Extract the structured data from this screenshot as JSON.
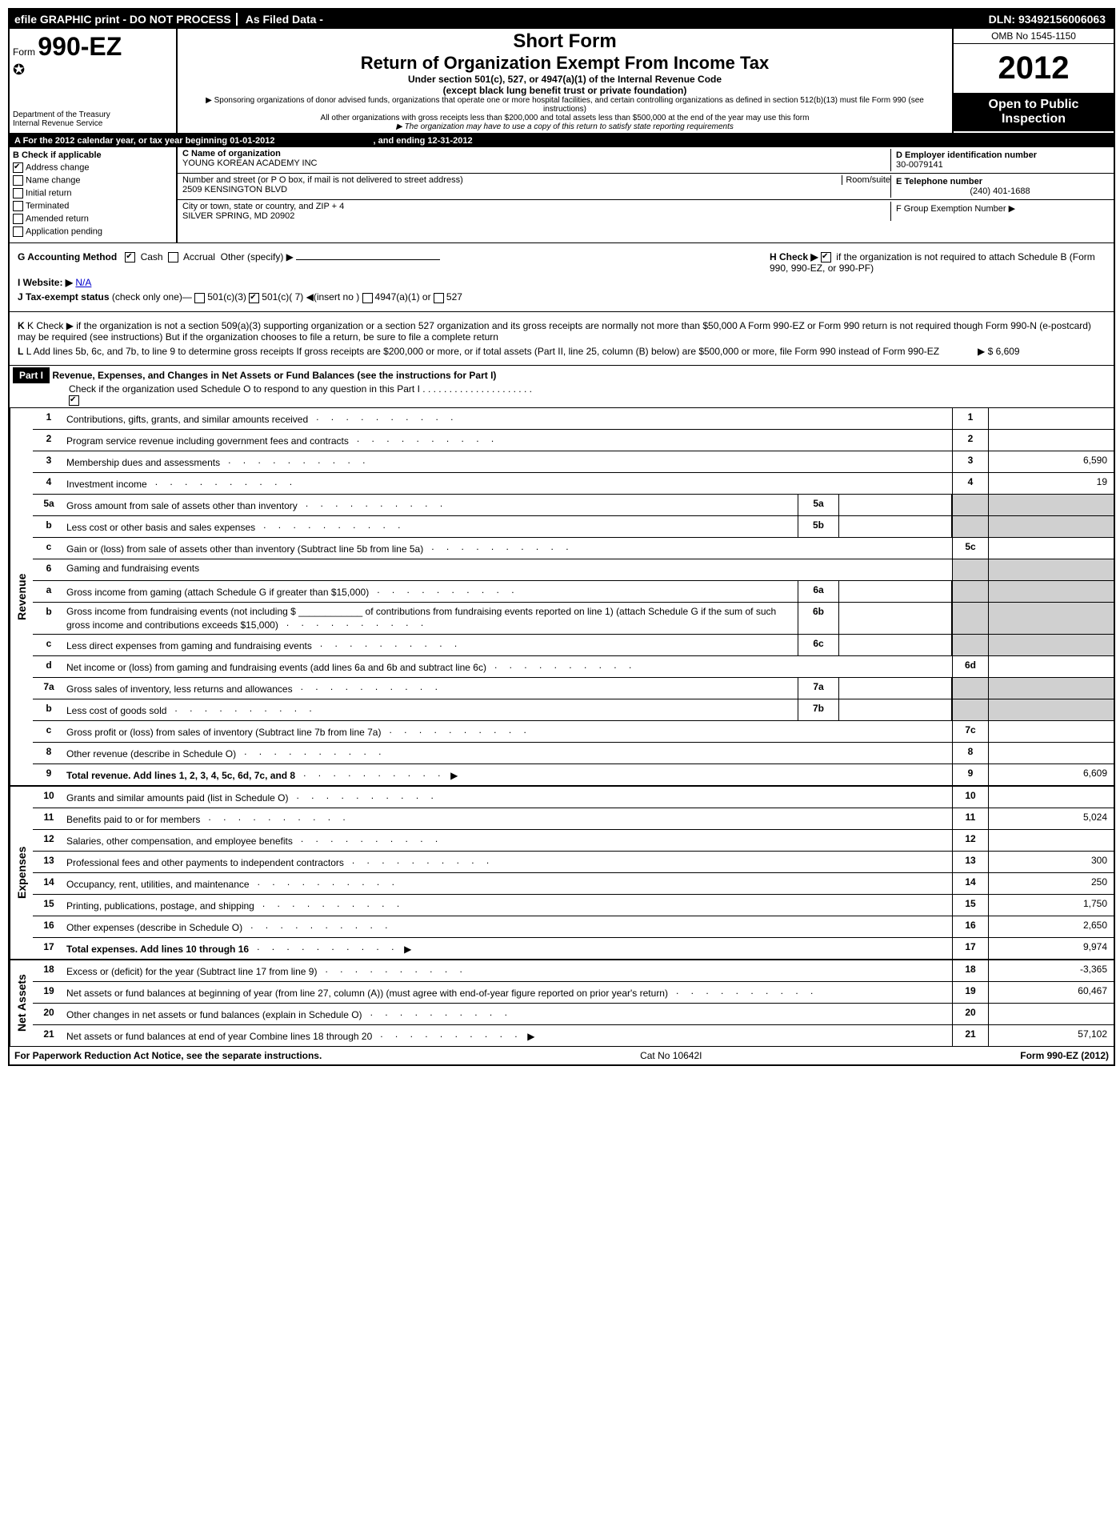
{
  "top_bar": {
    "left": "efile GRAPHIC print - DO NOT PROCESS",
    "mid": "As Filed Data -",
    "right": "DLN: 93492156006063"
  },
  "header": {
    "form_label": "Form",
    "form_number": "990-EZ",
    "dept1": "Department of the Treasury",
    "dept2": "Internal Revenue Service",
    "short_form": "Short Form",
    "title": "Return of Organization Exempt From Income Tax",
    "subtitle1": "Under section 501(c), 527, or 4947(a)(1) of the Internal Revenue Code",
    "subtitle2": "(except black lung benefit trust or private foundation)",
    "note1": "▶ Sponsoring organizations of donor advised funds, organizations that operate one or more hospital facilities, and certain controlling organizations as defined in section 512(b)(13) must file Form 990 (see instructions)",
    "note2": "All other organizations with gross receipts less than $200,000 and total assets less than $500,000 at the end of the year may use this form",
    "note3": "▶ The organization may have to use a copy of this return to satisfy state reporting requirements",
    "omb": "OMB No 1545-1150",
    "year": "2012",
    "open_public1": "Open to Public",
    "open_public2": "Inspection"
  },
  "row_a": {
    "text": "A  For the 2012 calendar year, or tax year beginning 01-01-2012",
    "ending": ", and ending 12-31-2012"
  },
  "col_b": {
    "header": "B  Check if applicable",
    "items": [
      "Address change",
      "Name change",
      "Initial return",
      "Terminated",
      "Amended return",
      "Application pending"
    ],
    "checked": [
      true,
      false,
      false,
      false,
      false,
      false
    ]
  },
  "col_c": {
    "name_label": "C Name of organization",
    "name": "YOUNG KOREAN ACADEMY INC",
    "street_label": "Number and street (or P O box, if mail is not delivered to street address)",
    "room_label": "Room/suite",
    "street": "2509 KENSINGTON BLVD",
    "city_label": "City or town, state or country, and ZIP + 4",
    "city": "SILVER SPRING, MD  20902"
  },
  "col_d": {
    "ein_label": "D Employer identification number",
    "ein": "30-0079141",
    "phone_label": "E Telephone number",
    "phone": "(240) 401-1688",
    "group_label": "F Group Exemption Number  ▶"
  },
  "mid": {
    "g_label": "G Accounting Method",
    "g_cash": "Cash",
    "g_accrual": "Accrual",
    "g_other": "Other (specify) ▶",
    "h_text1": "H  Check ▶",
    "h_text2": "if the organization is not required to attach Schedule B (Form 990, 990-EZ, or 990-PF)",
    "i_label": "I Website: ▶",
    "i_value": "N/A",
    "j_label": "J Tax-exempt status",
    "j_text": "(check only one)—",
    "j_opts": [
      "501(c)(3)",
      "501(c)( 7) ◀(insert no )",
      "4947(a)(1) or",
      "527"
    ],
    "k_text": "K Check ▶     if the organization is not a section 509(a)(3) supporting organization or a section 527 organization and its gross receipts are normally not more than $50,000  A Form 990-EZ or Form 990 return is not required though Form 990-N (e-postcard) may be required (see instructions)  But if the organization chooses to file a return, be sure to file a complete return",
    "l_text": "L Add lines 5b, 6c, and 7b, to line 9 to determine gross receipts  If gross receipts are $200,000 or more, or if total assets (Part II, line 25, column (B) below) are $500,000 or more, file Form 990 instead of Form 990-EZ",
    "l_val": "▶ $ 6,609"
  },
  "part1": {
    "label": "Part I",
    "title": "Revenue, Expenses, and Changes in Net Assets or Fund Balances (see the instructions for Part I)",
    "check_text": "Check if the organization used Schedule O to respond to any question in this Part I"
  },
  "revenue_label": "Revenue",
  "expenses_label": "Expenses",
  "netassets_label": "Net Assets",
  "lines": {
    "l1": {
      "num": "1",
      "text": "Contributions, gifts, grants, and similar amounts received",
      "box": "1",
      "val": ""
    },
    "l2": {
      "num": "2",
      "text": "Program service revenue including government fees and contracts",
      "box": "2",
      "val": ""
    },
    "l3": {
      "num": "3",
      "text": "Membership dues and assessments",
      "box": "3",
      "val": "6,590"
    },
    "l4": {
      "num": "4",
      "text": "Investment income",
      "box": "4",
      "val": "19"
    },
    "l5a": {
      "num": "5a",
      "text": "Gross amount from sale of assets other than inventory",
      "sub": "5a"
    },
    "l5b": {
      "num": "b",
      "text": "Less  cost or other basis and sales expenses",
      "sub": "5b"
    },
    "l5c": {
      "num": "c",
      "text": "Gain or (loss) from sale of assets other than inventory (Subtract line 5b from line 5a)",
      "box": "5c",
      "val": ""
    },
    "l6": {
      "num": "6",
      "text": "Gaming and fundraising events"
    },
    "l6a": {
      "num": "a",
      "text": "Gross income from gaming (attach Schedule G if greater than $15,000)",
      "sub": "6a"
    },
    "l6b": {
      "num": "b",
      "text": "Gross income from fundraising events (not including $ ____________ of contributions from fundraising events reported on line 1) (attach Schedule G if the sum of such gross income and contributions exceeds $15,000)",
      "sub": "6b"
    },
    "l6c": {
      "num": "c",
      "text": "Less  direct expenses from gaming and fundraising events",
      "sub": "6c"
    },
    "l6d": {
      "num": "d",
      "text": "Net income or (loss) from gaming and fundraising events (add lines 6a and 6b and subtract line 6c)",
      "box": "6d",
      "val": ""
    },
    "l7a": {
      "num": "7a",
      "text": "Gross sales of inventory, less returns and allowances",
      "sub": "7a"
    },
    "l7b": {
      "num": "b",
      "text": "Less  cost of goods sold",
      "sub": "7b"
    },
    "l7c": {
      "num": "c",
      "text": "Gross profit or (loss) from sales of inventory (Subtract line 7b from line 7a)",
      "box": "7c",
      "val": ""
    },
    "l8": {
      "num": "8",
      "text": "Other revenue (describe in Schedule O)",
      "box": "8",
      "val": ""
    },
    "l9": {
      "num": "9",
      "text": "Total revenue. Add lines 1, 2, 3, 4, 5c, 6d, 7c, and 8",
      "box": "9",
      "val": "6,609",
      "bold": true,
      "arrow": true
    },
    "l10": {
      "num": "10",
      "text": "Grants and similar amounts paid (list in Schedule O)",
      "box": "10",
      "val": ""
    },
    "l11": {
      "num": "11",
      "text": "Benefits paid to or for members",
      "box": "11",
      "val": "5,024"
    },
    "l12": {
      "num": "12",
      "text": "Salaries, other compensation, and employee benefits",
      "box": "12",
      "val": ""
    },
    "l13": {
      "num": "13",
      "text": "Professional fees and other payments to independent contractors",
      "box": "13",
      "val": "300"
    },
    "l14": {
      "num": "14",
      "text": "Occupancy, rent, utilities, and maintenance",
      "box": "14",
      "val": "250"
    },
    "l15": {
      "num": "15",
      "text": "Printing, publications, postage, and shipping",
      "box": "15",
      "val": "1,750"
    },
    "l16": {
      "num": "16",
      "text": "Other expenses (describe in Schedule O)",
      "box": "16",
      "val": "2,650"
    },
    "l17": {
      "num": "17",
      "text": "Total expenses. Add lines 10 through 16",
      "box": "17",
      "val": "9,974",
      "bold": true,
      "arrow": true
    },
    "l18": {
      "num": "18",
      "text": "Excess or (deficit) for the year (Subtract line 17 from line 9)",
      "box": "18",
      "val": "-3,365"
    },
    "l19": {
      "num": "19",
      "text": "Net assets or fund balances at beginning of year (from line 27, column (A)) (must agree with end-of-year figure reported on prior year's return)",
      "box": "19",
      "val": "60,467"
    },
    "l20": {
      "num": "20",
      "text": "Other changes in net assets or fund balances (explain in Schedule O)",
      "box": "20",
      "val": ""
    },
    "l21": {
      "num": "21",
      "text": "Net assets or fund balances at end of year  Combine lines 18 through 20",
      "box": "21",
      "val": "57,102",
      "arrow": true
    }
  },
  "footer": {
    "left": "For Paperwork Reduction Act Notice, see the separate instructions.",
    "center": "Cat No 10642I",
    "right": "Form 990-EZ (2012)"
  },
  "dots": ".  .  .  .  .  .  .  .  .  .  .  .  .  .  .  .  .  .  .  ."
}
